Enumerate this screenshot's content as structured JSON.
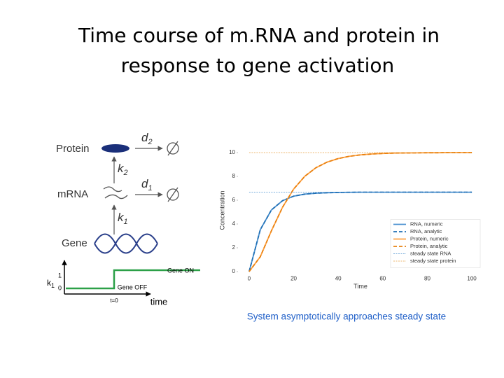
{
  "slide_title": [
    "Time course of m.RNA and protein in",
    "response to gene activation"
  ],
  "diagram": {
    "protein": "Protein",
    "mrna": "mRNA",
    "gene": "Gene",
    "d2": {
      "symbol": "d",
      "subscript": "2"
    },
    "d1": {
      "symbol": "d",
      "subscript": "1"
    },
    "k2": {
      "symbol": "k",
      "subscript": "2"
    },
    "k1": {
      "symbol": "k",
      "subscript": "1"
    }
  },
  "step_plot": {
    "y_label": {
      "symbol": "k",
      "subscript": "1"
    },
    "level_high": "1",
    "level_low": "0",
    "on_label": "Gene ON",
    "off_label": "Gene OFF",
    "t0_label": "t=0",
    "x_label": "time"
  },
  "caption": "System asymptotically approaches steady state",
  "chart_data": {
    "type": "line",
    "x_label": "Time",
    "y_label": "Concentration",
    "x": [
      0,
      5,
      10,
      15,
      20,
      25,
      30,
      35,
      40,
      45,
      50,
      55,
      60,
      65,
      70,
      75,
      80,
      85,
      90,
      95,
      100
    ],
    "series": [
      {
        "name": "RNA, numeric",
        "color": "#4a90d0",
        "dash": "solid",
        "values": [
          0,
          3.52,
          5.18,
          5.96,
          6.34,
          6.51,
          6.59,
          6.63,
          6.65,
          6.66,
          6.67,
          6.67,
          6.67,
          6.67,
          6.67,
          6.67,
          6.67,
          6.67,
          6.67,
          6.67,
          6.67
        ]
      },
      {
        "name": "RNA, analytic",
        "color": "#1f6fb4",
        "dash": "dashed",
        "values": [
          0,
          3.52,
          5.18,
          5.96,
          6.34,
          6.51,
          6.59,
          6.63,
          6.65,
          6.66,
          6.67,
          6.67,
          6.67,
          6.67,
          6.67,
          6.67,
          6.67,
          6.67,
          6.67,
          6.67,
          6.67
        ]
      },
      {
        "name": "Protein, numeric",
        "color": "#ffa040",
        "dash": "solid",
        "values": [
          0,
          1.25,
          3.43,
          5.41,
          6.94,
          8.01,
          8.73,
          9.2,
          9.5,
          9.69,
          9.81,
          9.88,
          9.93,
          9.96,
          9.97,
          9.98,
          9.99,
          9.99,
          10,
          10,
          10
        ]
      },
      {
        "name": "Protein, analytic",
        "color": "#e8800e",
        "dash": "dashed",
        "values": [
          0,
          1.25,
          3.43,
          5.41,
          6.94,
          8.01,
          8.73,
          9.2,
          9.5,
          9.69,
          9.81,
          9.88,
          9.93,
          9.96,
          9.97,
          9.98,
          9.99,
          9.99,
          10,
          10,
          10
        ]
      },
      {
        "name": "steady state RNA",
        "color": "#4a90d0",
        "dash": "fine",
        "values": [
          6.67,
          6.67,
          6.67,
          6.67,
          6.67,
          6.67,
          6.67,
          6.67,
          6.67,
          6.67,
          6.67,
          6.67,
          6.67,
          6.67,
          6.67,
          6.67,
          6.67,
          6.67,
          6.67,
          6.67,
          6.67
        ]
      },
      {
        "name": "steady state protein",
        "color": "#e8a040",
        "dash": "fine",
        "values": [
          10,
          10,
          10,
          10,
          10,
          10,
          10,
          10,
          10,
          10,
          10,
          10,
          10,
          10,
          10,
          10,
          10,
          10,
          10,
          10,
          10
        ]
      }
    ],
    "xlim": [
      -5,
      105
    ],
    "ylim": [
      -0.5,
      10.8
    ],
    "xticks": [
      0,
      20,
      40,
      60,
      80,
      100
    ],
    "yticks": [
      0,
      2,
      4,
      6,
      8,
      10
    ],
    "grid": false,
    "legend": "lower-right"
  }
}
